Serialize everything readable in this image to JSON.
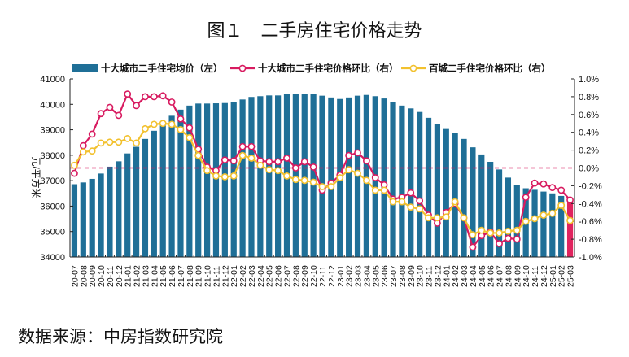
{
  "title": "图１　二手房住宅价格走势",
  "source": "数据来源：中房指数研究院",
  "chart_data": {
    "type": "bar+line",
    "categories": [
      "20-07",
      "20-08",
      "20-09",
      "20-10",
      "20-11",
      "20-12",
      "21-01",
      "21-02",
      "21-03",
      "21-04",
      "21-05",
      "21-06",
      "21-07",
      "21-08",
      "21-09",
      "21-10",
      "21-11",
      "21-12",
      "22-01",
      "22-02",
      "22-03",
      "22-04",
      "22-05",
      "22-06",
      "22-07",
      "22-08",
      "22-09",
      "22-10",
      "22-11",
      "22-12",
      "23-01",
      "23-02",
      "23-03",
      "23-04",
      "23-05",
      "23-06",
      "23-07",
      "23-08",
      "23-09",
      "23-10",
      "23-11",
      "23-12",
      "24-01",
      "24-02",
      "24-03",
      "24-04",
      "24-05",
      "24-06",
      "24-07",
      "24-08",
      "24-09",
      "24-10",
      "24-11",
      "24-12",
      "25-01",
      "25-02",
      "25-03"
    ],
    "ylabel_left": "元/平方米",
    "ylim_left": [
      34000,
      41000
    ],
    "yticks_left": [
      "34000",
      "35000",
      "36000",
      "37000",
      "38000",
      "39000",
      "40000",
      "41000"
    ],
    "ylim_right": [
      -1.0,
      1.0
    ],
    "yticks_right": [
      "-1.0%",
      "-0.8%",
      "-0.6%",
      "-0.4%",
      "-0.2%",
      "0.0%",
      "0.2%",
      "0.4%",
      "0.6%",
      "0.8%",
      "1.0%"
    ],
    "legend_position": "top",
    "reference_line": 0.0,
    "series": [
      {
        "name": "十大城市二手住宅均价（左）",
        "type": "bar",
        "axis": "left",
        "color": "#1f6f97",
        "highlight_last_color": "#e0245e",
        "values": [
          36860,
          36930,
          37070,
          37280,
          37550,
          37760,
          38070,
          38330,
          38640,
          38960,
          39250,
          39550,
          39790,
          39950,
          40030,
          40030,
          40040,
          40050,
          40100,
          40190,
          40290,
          40320,
          40350,
          40350,
          40400,
          40400,
          40410,
          40420,
          40340,
          40270,
          40210,
          40270,
          40340,
          40370,
          40320,
          40230,
          40080,
          39950,
          39840,
          39700,
          39470,
          39230,
          39030,
          38860,
          38640,
          38310,
          38030,
          37740,
          37440,
          37120,
          36820,
          36700,
          36640,
          36570,
          36500,
          36400,
          36150
        ]
      },
      {
        "name": "十大城市二手住宅价格环比（右）",
        "type": "line",
        "axis": "right",
        "color": "#d81b60",
        "values": [
          -0.06,
          0.25,
          0.38,
          0.61,
          0.68,
          0.59,
          0.83,
          0.7,
          0.8,
          0.8,
          0.81,
          0.74,
          0.55,
          0.45,
          0.21,
          0.01,
          -0.03,
          0.09,
          0.08,
          0.24,
          0.24,
          0.08,
          0.07,
          0.07,
          0.11,
          0.0,
          0.07,
          0.01,
          -0.25,
          -0.17,
          -0.08,
          0.14,
          0.17,
          0.08,
          -0.11,
          -0.19,
          -0.35,
          -0.33,
          -0.28,
          -0.37,
          -0.53,
          -0.62,
          -0.5,
          -0.4,
          -0.56,
          -0.89,
          -0.76,
          -0.72,
          -0.85,
          -0.79,
          -0.8,
          -0.33,
          -0.17,
          -0.18,
          -0.22,
          -0.25,
          -0.36
        ]
      },
      {
        "name": "百城二手住宅价格环比（右）",
        "type": "line",
        "axis": "right",
        "color": "#f2c12e",
        "values": [
          0.03,
          0.18,
          0.19,
          0.28,
          0.29,
          0.29,
          0.33,
          0.28,
          0.44,
          0.49,
          0.5,
          0.49,
          0.43,
          0.34,
          0.14,
          -0.03,
          -0.09,
          -0.1,
          -0.09,
          0.14,
          0.11,
          0.03,
          -0.02,
          -0.03,
          -0.09,
          -0.13,
          -0.14,
          -0.16,
          -0.21,
          -0.21,
          -0.11,
          -0.02,
          -0.06,
          -0.14,
          -0.25,
          -0.25,
          -0.38,
          -0.38,
          -0.44,
          -0.46,
          -0.56,
          -0.56,
          -0.55,
          -0.38,
          -0.56,
          -0.75,
          -0.7,
          -0.73,
          -0.73,
          -0.71,
          -0.7,
          -0.6,
          -0.57,
          -0.53,
          -0.51,
          -0.42,
          -0.59
        ]
      }
    ]
  }
}
